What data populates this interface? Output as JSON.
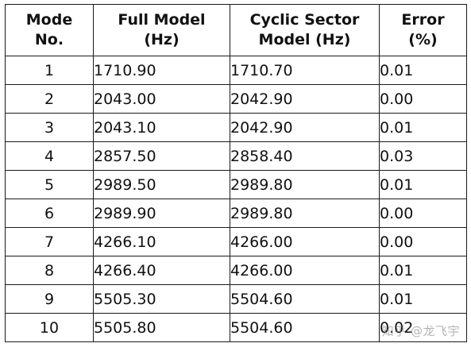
{
  "table": {
    "headers": [
      {
        "line1": "Mode",
        "line2": "No."
      },
      {
        "line1": "Full Model",
        "line2": "(Hz)"
      },
      {
        "line1": "Cyclic Sector",
        "line2": "Model (Hz)"
      },
      {
        "line1": "Error",
        "line2": "(%)"
      }
    ],
    "rows": [
      {
        "mode": "1",
        "full": "1710.90",
        "cyclic": "1710.70",
        "error": "0.01"
      },
      {
        "mode": "2",
        "full": "2043.00",
        "cyclic": "2042.90",
        "error": "0.00"
      },
      {
        "mode": "3",
        "full": "2043.10",
        "cyclic": "2042.90",
        "error": "0.01"
      },
      {
        "mode": "4",
        "full": "2857.50",
        "cyclic": "2858.40",
        "error": "0.03"
      },
      {
        "mode": "5",
        "full": "2989.50",
        "cyclic": "2989.80",
        "error": "0.01"
      },
      {
        "mode": "6",
        "full": "2989.90",
        "cyclic": "2989.80",
        "error": "0.00"
      },
      {
        "mode": "7",
        "full": "4266.10",
        "cyclic": "4266.00",
        "error": "0.00"
      },
      {
        "mode": "8",
        "full": "4266.40",
        "cyclic": "4266.00",
        "error": "0.01"
      },
      {
        "mode": "9",
        "full": "5505.30",
        "cyclic": "5504.60",
        "error": "0.01"
      },
      {
        "mode": "10",
        "full": "5505.80",
        "cyclic": "5504.60",
        "error": "0.02"
      }
    ]
  },
  "watermark": "知乎 @龙飞宇"
}
